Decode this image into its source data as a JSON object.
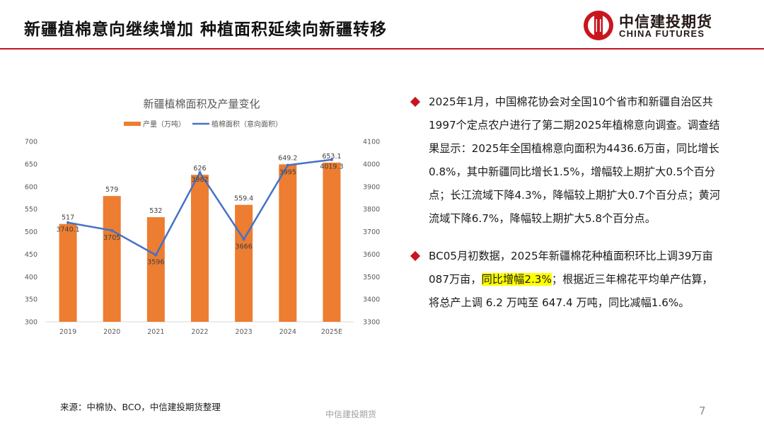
{
  "header": {
    "title": "新疆植棉意向继续增加 种植面积延续向新疆转移",
    "logo_cn": "中信建投期货",
    "logo_en": "CHINA FUTURES"
  },
  "colors": {
    "accent": "#c8161e",
    "bar": "#ed7d31",
    "line": "#4472c4",
    "highlight": "#ffff00"
  },
  "chart_data": {
    "type": "bar+line",
    "title": "新疆植棉面积及产量变化",
    "categories": [
      "2019",
      "2020",
      "2021",
      "2022",
      "2023",
      "2024",
      "2025E"
    ],
    "series": [
      {
        "name": "产量（万吨）",
        "type": "bar",
        "axis": "left",
        "values": [
          517,
          579,
          532,
          626,
          559.4,
          649.2,
          653.1
        ],
        "labels": [
          "517",
          "579",
          "532",
          "626",
          "559.4",
          "649.2",
          "653.1"
        ]
      },
      {
        "name": "植棉面积（意向面积）",
        "type": "line",
        "axis": "right",
        "values": [
          3740.1,
          3705,
          3596,
          3962,
          3666,
          3995,
          4019.3
        ],
        "labels": [
          "3740.1",
          "3705",
          "3596",
          "3962",
          "3666",
          "3995",
          "4019.3"
        ]
      }
    ],
    "y_left": {
      "range": [
        300,
        700
      ],
      "ticks": [
        "300",
        "350",
        "400",
        "450",
        "500",
        "550",
        "600",
        "650",
        "700"
      ]
    },
    "y_right": {
      "range": [
        3300,
        4100
      ],
      "ticks": [
        "3300",
        "3400",
        "3500",
        "3600",
        "3700",
        "3800",
        "3900",
        "4000",
        "4100"
      ]
    },
    "legend_position": "top",
    "grid": false
  },
  "bullets": [
    {
      "parts": [
        {
          "text": "2025年1月，中国棉花协会对全国10个省市和新疆自治区共1997个定点农户进行了第二期2025年植棉意向调查。调查结果显示：2025年全国植棉意向面积为4436.6万亩，同比增长0.8%，其中新疆同比增长1.5%，增幅较上期扩大0.5个百分点；长江流域下降4.3%，降幅较上期扩大0.7个百分点；黄河流域下降6.7%，降幅较上期扩大5.8个百分点。",
          "highlight": false
        }
      ]
    },
    {
      "parts": [
        {
          "text": "BC05月初数据，2025年新疆棉花种植面积环比上调39万亩087万亩，",
          "highlight": false
        },
        {
          "text": "同比增幅2.3%",
          "highlight": true
        },
        {
          "text": "；根据近三年棉花平均单产估算，将总产上调 6.2 万吨至 647.4 万吨，同比减幅1.6%。",
          "highlight": false
        }
      ]
    }
  ],
  "footer": {
    "source": "来源：中棉协、BCO，中信建投期货整理",
    "center": "中信建投期货",
    "page": "7"
  }
}
